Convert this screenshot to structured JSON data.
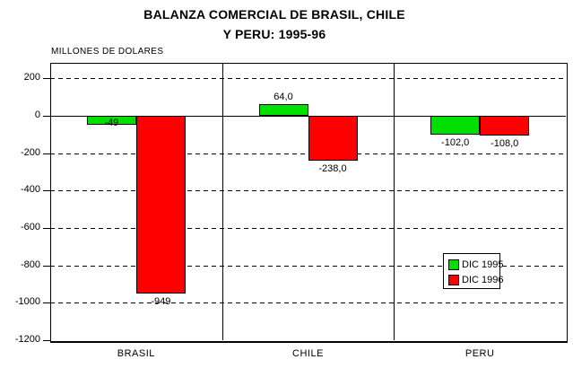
{
  "chart_data": {
    "type": "bar",
    "title_line1": "BALANZA COMERCIAL DE BRASIL, CHILE",
    "title_line2": "Y PERU: 1995-96",
    "ylabel": "MILLONES DE DOLARES",
    "categories": [
      "BRASIL",
      "CHILE",
      "PERU"
    ],
    "series": [
      {
        "name": "DIC 1995",
        "color": "#00e000",
        "values": [
          -49,
          64,
          -102
        ],
        "labels": [
          "-49",
          "64,0",
          "-102,0"
        ]
      },
      {
        "name": "DIC 1996",
        "color": "#ff0000",
        "values": [
          -949,
          -238,
          -108
        ],
        "labels": [
          "-949",
          "-238,0",
          "-108,0"
        ]
      }
    ],
    "yticks": [
      200,
      0,
      -200,
      -400,
      -600,
      -800,
      -1000,
      -1200
    ],
    "ylim": [
      -1200,
      283
    ],
    "grid": "horizontal dashed lines at each tick, solid line at 0, solid axis at -1200",
    "legend_position": "inside-right, between -700 and -950"
  }
}
